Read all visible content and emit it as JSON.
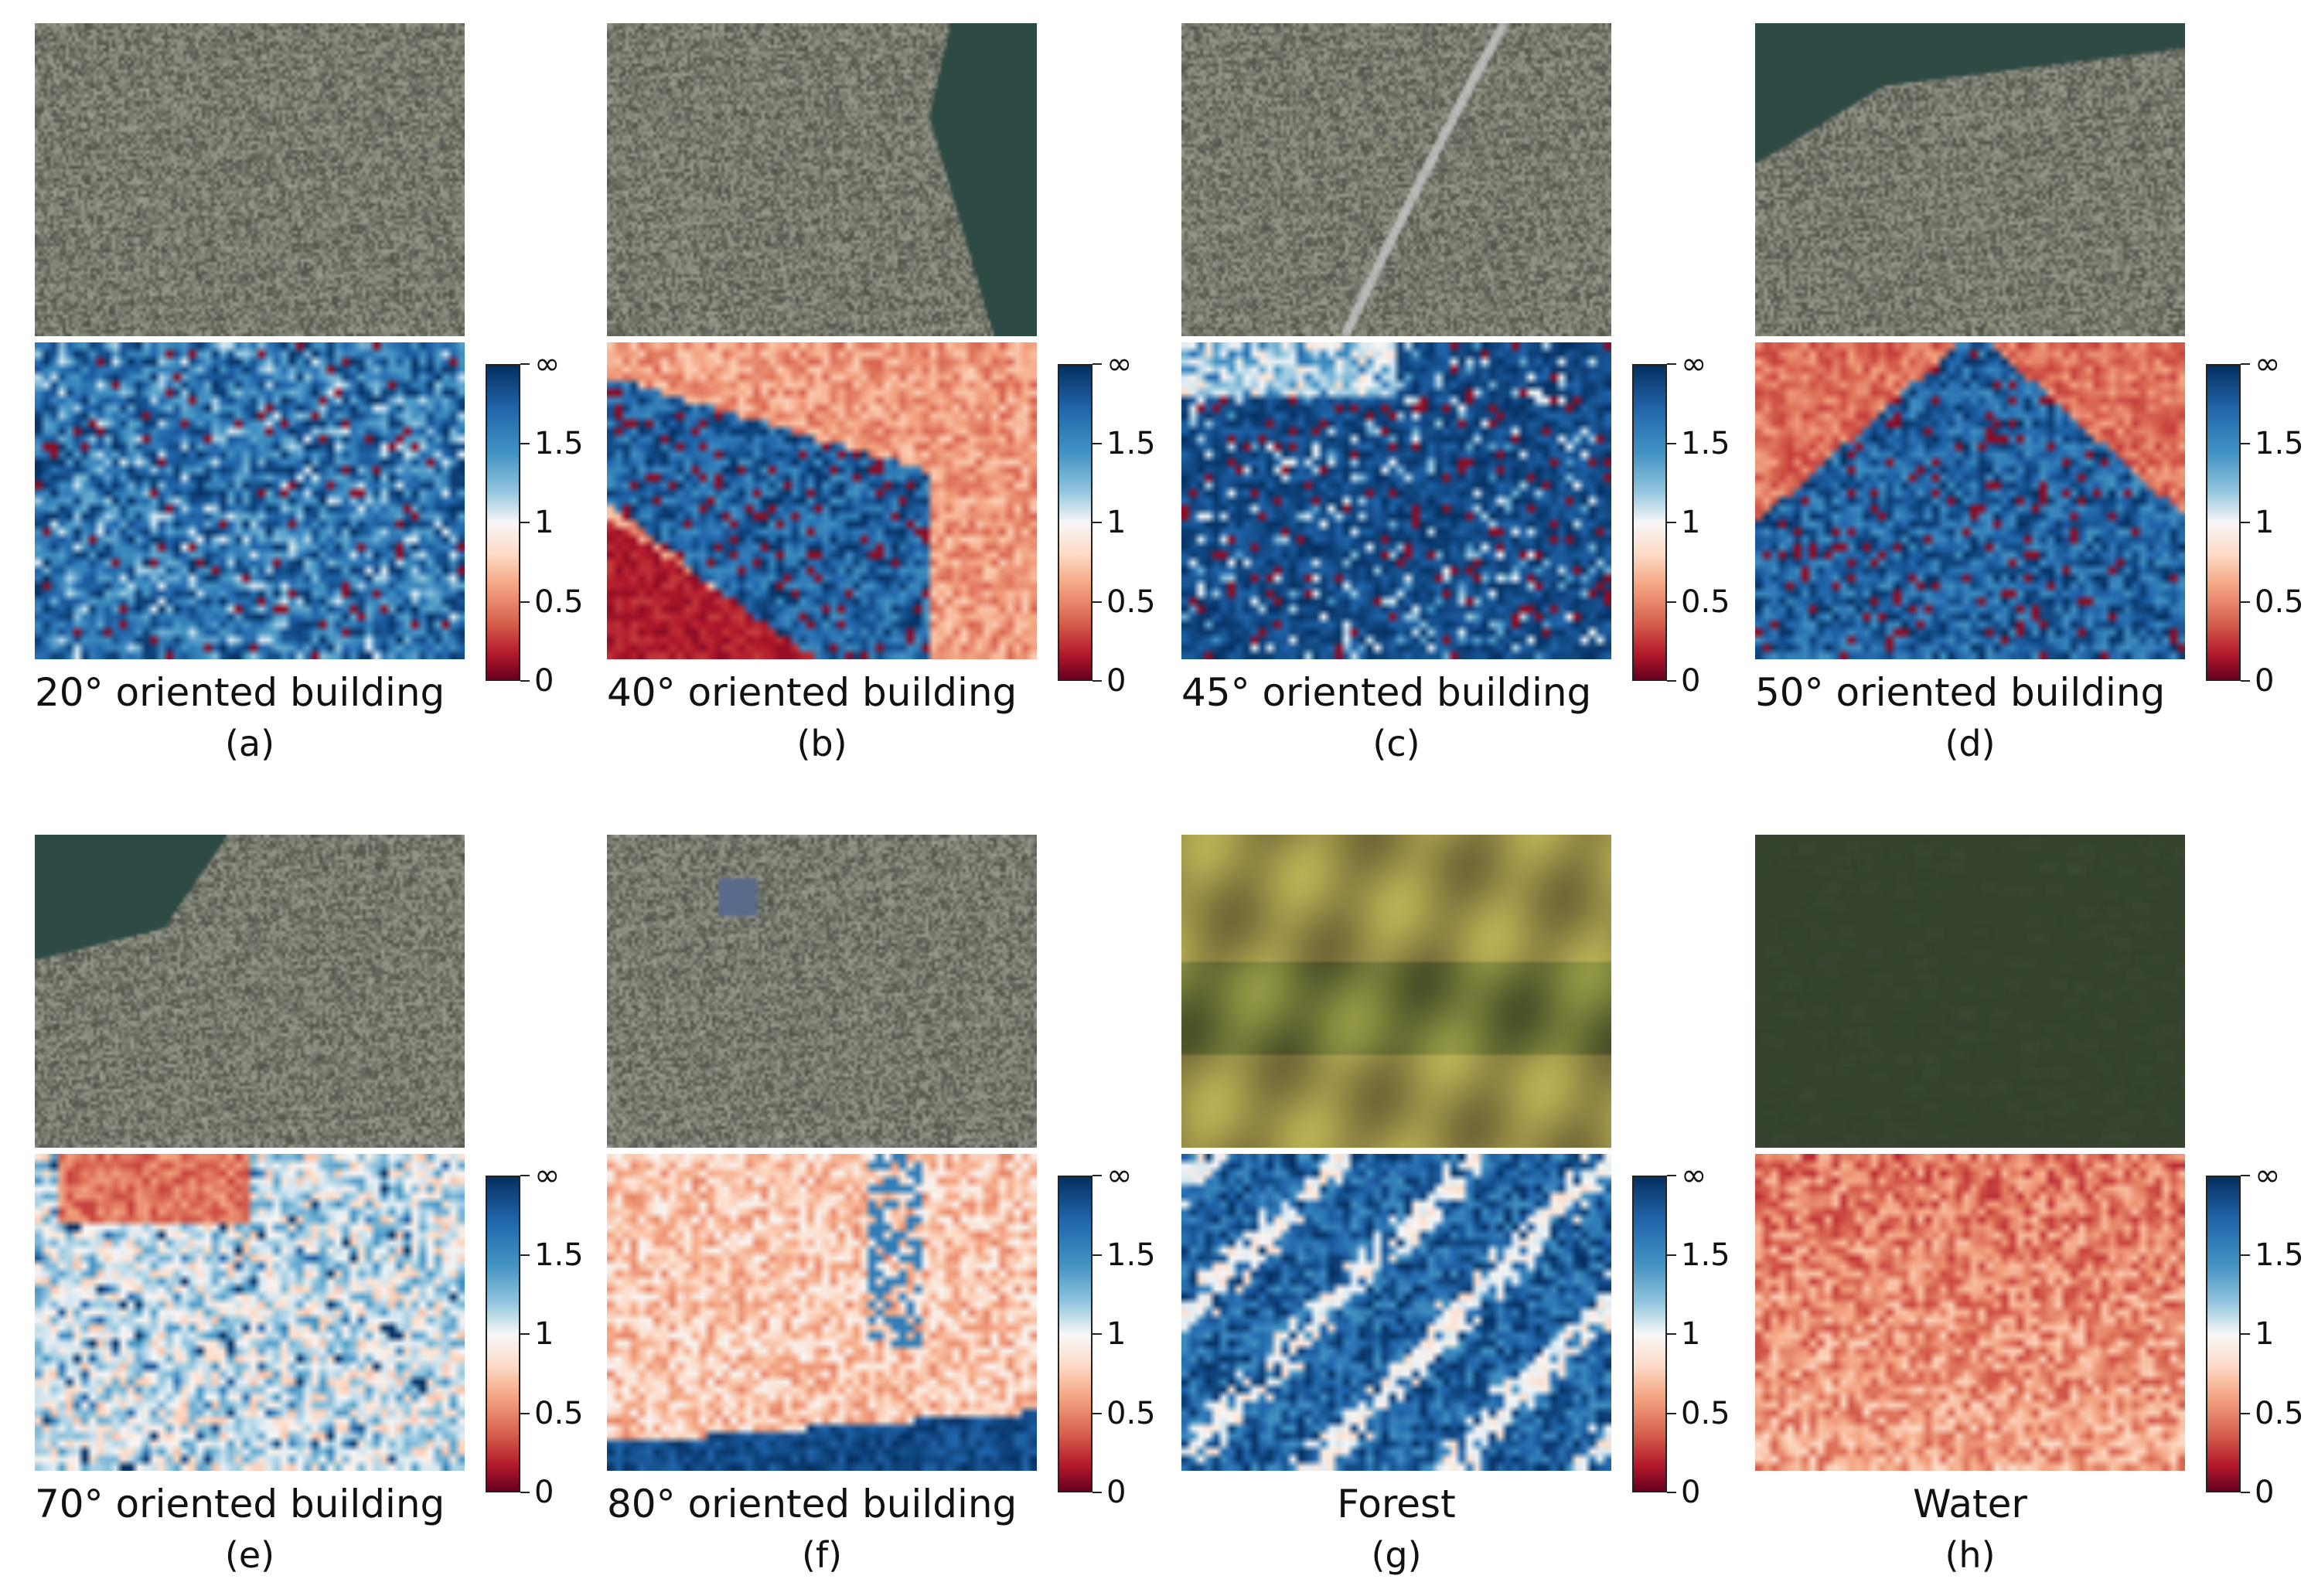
{
  "colorbar": {
    "ticks": [
      "∞",
      "1.5",
      "1",
      "0.5",
      "0"
    ]
  },
  "panels": [
    {
      "caption": "20° oriented building",
      "sub": "(a)",
      "sat": "suburban-grid",
      "heat": "blue-mostly",
      "centered": false
    },
    {
      "caption": "40° oriented building",
      "sub": "(b)",
      "sat": "downtown-waterfront",
      "heat": "diag-blue-red",
      "centered": false
    },
    {
      "caption": "45° oriented building",
      "sub": "(c)",
      "sat": "highway-suburb",
      "heat": "blue-dense",
      "centered": false
    },
    {
      "caption": "50° oriented building",
      "sub": "(d)",
      "sat": "coastal-suburb",
      "heat": "triangle-blue",
      "centered": false
    },
    {
      "caption": "70° oriented building",
      "sub": "(e)",
      "sat": "marina-city",
      "heat": "mixed-white",
      "centered": false
    },
    {
      "caption": "80° oriented building",
      "sub": "(f)",
      "sat": "grid-blocks",
      "heat": "red-bottom-blue",
      "centered": false
    },
    {
      "caption": "Forest",
      "sub": "(g)",
      "sat": "forest-hills",
      "heat": "blue-streaks",
      "centered": true
    },
    {
      "caption": "Water",
      "sub": "(h)",
      "sat": "water",
      "heat": "red-all",
      "centered": true
    }
  ]
}
